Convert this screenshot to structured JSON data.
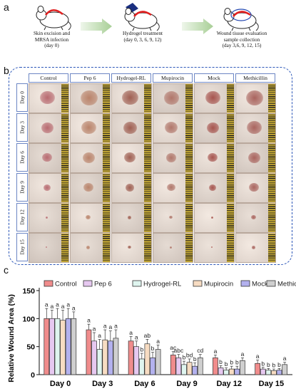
{
  "panel_a": {
    "letter": "a",
    "steps": [
      {
        "lines": [
          "Skin excision and",
          "MRSA infection",
          "(day 0)"
        ]
      },
      {
        "lines": [
          "Hydrogel treatment",
          "(day 0, 3, 6, 9, 12)"
        ]
      },
      {
        "lines": [
          "Wound tissue evaluation",
          "sample collection",
          "(day 3,6, 9, 12, 15)"
        ]
      }
    ]
  },
  "panel_b": {
    "letter": "b",
    "columns": [
      "Control",
      "Pep 6",
      "Hydrogel-RL",
      "Mupirocin",
      "Mock",
      "Methicillin"
    ],
    "rows": [
      "Day 0",
      "Day 3",
      "Day 6",
      "Day 9",
      "Day 12",
      "Day 15"
    ]
  },
  "panel_c": {
    "letter": "c",
    "chart_data": {
      "type": "bar",
      "ylabel": "Relative Wound Area (%)",
      "ylim": [
        0,
        150
      ],
      "yticks": [
        0,
        50,
        100,
        150
      ],
      "categories": [
        "Day 0",
        "Day 3",
        "Day 6",
        "Day 9",
        "Day 12",
        "Day 15"
      ],
      "series": [
        {
          "name": "Control",
          "color": "#f08c8c",
          "values": [
            100,
            80,
            60,
            35,
            30,
            20
          ],
          "errors": [
            18,
            10,
            8,
            6,
            5,
            6
          ],
          "letters": [
            "a",
            "a",
            "a",
            "ac",
            "a",
            "a"
          ]
        },
        {
          "name": "Pep 6",
          "color": "#e6c8f0",
          "values": [
            100,
            60,
            50,
            30,
            12,
            10
          ],
          "errors": [
            15,
            15,
            10,
            6,
            4,
            3
          ],
          "letters": [
            "a",
            "a",
            "a",
            "abc",
            "b",
            "b"
          ]
        },
        {
          "name": "Hydrogel-RL",
          "color": "#dff5ef",
          "values": [
            100,
            45,
            28,
            18,
            8,
            8
          ],
          "errors": [
            18,
            18,
            10,
            6,
            4,
            3
          ],
          "letters": [
            "a",
            "a",
            "b",
            "b",
            "b",
            "b"
          ]
        },
        {
          "name": "Mupirocin",
          "color": "#f7dcc2",
          "values": [
            97,
            62,
            55,
            22,
            10,
            7
          ],
          "errors": [
            18,
            18,
            8,
            6,
            5,
            3
          ],
          "letters": [
            "a",
            "a",
            "ab",
            "bd",
            "b",
            "b"
          ]
        },
        {
          "name": "Mock",
          "color": "#b3b1ee",
          "values": [
            100,
            60,
            30,
            15,
            10,
            8
          ],
          "errors": [
            18,
            18,
            10,
            6,
            5,
            3
          ],
          "letters": [
            "a",
            "a",
            "b",
            "b",
            "b",
            "b"
          ]
        },
        {
          "name": "Methicillin",
          "color": "#cfcfcf",
          "values": [
            100,
            65,
            45,
            30,
            25,
            18
          ],
          "errors": [
            12,
            15,
            8,
            6,
            5,
            4
          ],
          "letters": [
            "a",
            "a",
            "a",
            "cd",
            "a",
            "a"
          ]
        }
      ]
    }
  }
}
